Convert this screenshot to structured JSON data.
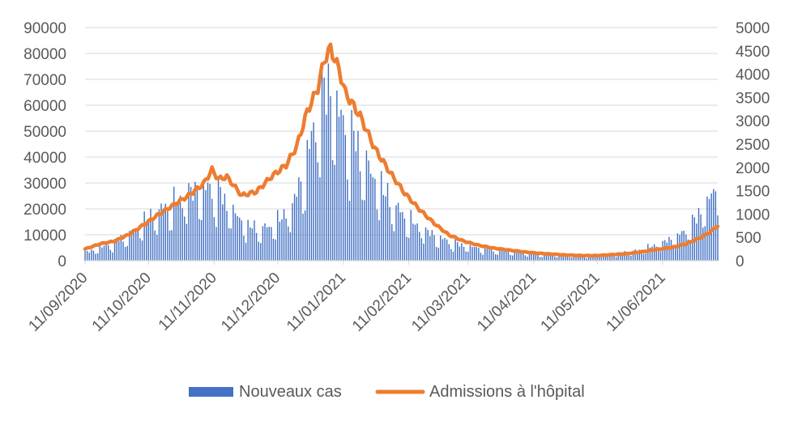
{
  "chart_data": {
    "type": "bar+line",
    "title": "",
    "xlabel": "",
    "ylabel": "",
    "y2label": "",
    "ylim": [
      0,
      90000
    ],
    "y2lim": [
      0,
      5000
    ],
    "yticks": [
      "0",
      "10000",
      "20000",
      "30000",
      "40000",
      "50000",
      "60000",
      "70000",
      "80000",
      "90000"
    ],
    "y2ticks": [
      "0",
      "500",
      "1000",
      "1500",
      "2000",
      "2500",
      "3000",
      "3500",
      "4000",
      "4500",
      "5000"
    ],
    "xticks": [
      "11/09/2020",
      "11/10/2020",
      "11/11/2020",
      "11/12/2020",
      "11/01/2021",
      "11/02/2021",
      "11/03/2021",
      "11/04/2021",
      "11/05/2021",
      "11/06/2021"
    ],
    "date_start": "2020-09-11",
    "date_end": "2021-07-07",
    "grid": true,
    "legend_position": "bottom",
    "series": [
      {
        "name": "Nouveaux cas",
        "kind": "bar",
        "axis": "left",
        "color": "#4472c4",
        "points": [
          [
            "2020-09-11",
            3000
          ],
          [
            "2020-09-18",
            5000
          ],
          [
            "2020-09-25",
            7000
          ],
          [
            "2020-10-02",
            10000
          ],
          [
            "2020-10-09",
            15000
          ],
          [
            "2020-10-16",
            19000
          ],
          [
            "2020-10-23",
            22000
          ],
          [
            "2020-10-30",
            26000
          ],
          [
            "2020-11-06",
            28000
          ],
          [
            "2020-11-13",
            26000
          ],
          [
            "2020-11-20",
            19000
          ],
          [
            "2020-11-27",
            13000
          ],
          [
            "2020-12-04",
            12000
          ],
          [
            "2020-12-11",
            15000
          ],
          [
            "2020-12-18",
            21000
          ],
          [
            "2020-12-25",
            38000
          ],
          [
            "2020-12-29",
            55000
          ],
          [
            "2021-01-01",
            62000
          ],
          [
            "2021-01-04",
            68000
          ],
          [
            "2021-01-08",
            60000
          ],
          [
            "2021-01-11",
            52000
          ],
          [
            "2021-01-15",
            47000
          ],
          [
            "2021-01-22",
            37000
          ],
          [
            "2021-01-29",
            28000
          ],
          [
            "2021-02-05",
            20000
          ],
          [
            "2021-02-12",
            15000
          ],
          [
            "2021-02-19",
            11500
          ],
          [
            "2021-02-26",
            8500
          ],
          [
            "2021-03-05",
            6500
          ],
          [
            "2021-03-12",
            5500
          ],
          [
            "2021-03-19",
            4500
          ],
          [
            "2021-03-26",
            4000
          ],
          [
            "2021-04-02",
            3500
          ],
          [
            "2021-04-09",
            2900
          ],
          [
            "2021-04-16",
            2500
          ],
          [
            "2021-04-23",
            2200
          ],
          [
            "2021-04-30",
            2000
          ],
          [
            "2021-05-07",
            2000
          ],
          [
            "2021-05-14",
            2200
          ],
          [
            "2021-05-21",
            2700
          ],
          [
            "2021-05-28",
            3500
          ],
          [
            "2021-06-04",
            5000
          ],
          [
            "2021-06-11",
            7000
          ],
          [
            "2021-06-18",
            9000
          ],
          [
            "2021-06-25",
            14000
          ],
          [
            "2021-07-01",
            22000
          ],
          [
            "2021-07-04",
            25000
          ],
          [
            "2021-07-07",
            28000
          ]
        ]
      },
      {
        "name": "Admissions à l'hôpital",
        "kind": "line",
        "axis": "right",
        "color": "#ed7d31",
        "points": [
          [
            "2020-09-11",
            250
          ],
          [
            "2020-09-18",
            360
          ],
          [
            "2020-09-25",
            420
          ],
          [
            "2020-10-02",
            570
          ],
          [
            "2020-10-09",
            780
          ],
          [
            "2020-10-16",
            1000
          ],
          [
            "2020-10-23",
            1200
          ],
          [
            "2020-10-30",
            1400
          ],
          [
            "2020-11-06",
            1650
          ],
          [
            "2020-11-10",
            1950
          ],
          [
            "2020-11-13",
            1750
          ],
          [
            "2020-11-17",
            1800
          ],
          [
            "2020-11-24",
            1400
          ],
          [
            "2020-12-01",
            1480
          ],
          [
            "2020-12-08",
            1800
          ],
          [
            "2020-12-15",
            2050
          ],
          [
            "2020-12-20",
            2450
          ],
          [
            "2020-12-25",
            3200
          ],
          [
            "2020-12-30",
            3700
          ],
          [
            "2021-01-02",
            4300
          ],
          [
            "2021-01-05",
            4550
          ],
          [
            "2021-01-09",
            4100
          ],
          [
            "2021-01-12",
            3600
          ],
          [
            "2021-01-19",
            3100
          ],
          [
            "2021-01-26",
            2400
          ],
          [
            "2021-02-02",
            1900
          ],
          [
            "2021-02-09",
            1450
          ],
          [
            "2021-02-16",
            1100
          ],
          [
            "2021-02-23",
            800
          ],
          [
            "2021-03-02",
            550
          ],
          [
            "2021-03-09",
            420
          ],
          [
            "2021-03-16",
            330
          ],
          [
            "2021-03-23",
            270
          ],
          [
            "2021-03-30",
            230
          ],
          [
            "2021-04-06",
            190
          ],
          [
            "2021-04-13",
            160
          ],
          [
            "2021-04-20",
            140
          ],
          [
            "2021-04-27",
            120
          ],
          [
            "2021-05-04",
            110
          ],
          [
            "2021-05-11",
            110
          ],
          [
            "2021-05-18",
            130
          ],
          [
            "2021-05-25",
            150
          ],
          [
            "2021-06-01",
            190
          ],
          [
            "2021-06-08",
            240
          ],
          [
            "2021-06-15",
            280
          ],
          [
            "2021-06-22",
            360
          ],
          [
            "2021-06-29",
            500
          ],
          [
            "2021-07-03",
            600
          ],
          [
            "2021-07-07",
            750
          ]
        ]
      }
    ]
  }
}
